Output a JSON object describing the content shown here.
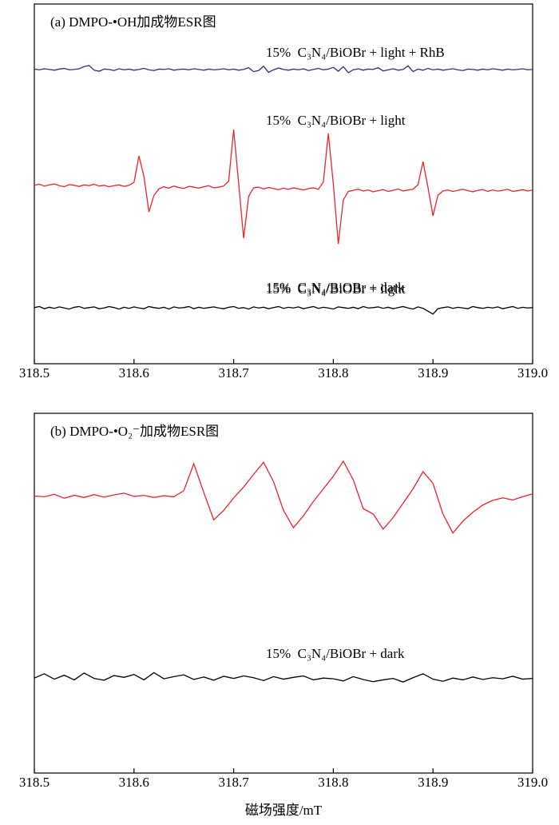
{
  "chart_data": [
    {
      "type": "line",
      "title": "(a) DMPO-•OH加成物ESR图",
      "x": [
        318.5,
        318.505,
        318.51,
        318.515,
        318.52,
        318.525,
        318.53,
        318.535,
        318.54,
        318.545,
        318.55,
        318.555,
        318.56,
        318.565,
        318.57,
        318.575,
        318.58,
        318.585,
        318.59,
        318.595,
        318.6,
        318.605,
        318.61,
        318.615,
        318.62,
        318.625,
        318.63,
        318.635,
        318.64,
        318.645,
        318.65,
        318.655,
        318.66,
        318.665,
        318.67,
        318.675,
        318.68,
        318.685,
        318.69,
        318.695,
        318.7,
        318.705,
        318.71,
        318.715,
        318.72,
        318.725,
        318.73,
        318.735,
        318.74,
        318.745,
        318.75,
        318.755,
        318.76,
        318.765,
        318.77,
        318.775,
        318.78,
        318.785,
        318.79,
        318.795,
        318.8,
        318.805,
        318.81,
        318.815,
        318.82,
        318.825,
        318.83,
        318.835,
        318.84,
        318.845,
        318.85,
        318.855,
        318.86,
        318.865,
        318.87,
        318.875,
        318.88,
        318.885,
        318.89,
        318.895,
        318.9,
        318.905,
        318.91,
        318.915,
        318.92,
        318.925,
        318.93,
        318.935,
        318.94,
        318.945,
        318.95,
        318.955,
        318.96,
        318.965,
        318.97,
        318.975,
        318.98,
        318.985,
        318.99,
        318.995,
        319.0
      ],
      "xlim": [
        318.5,
        319.0
      ],
      "xticks": [
        318.5,
        318.6,
        318.7,
        318.8,
        318.9,
        {
          "value": 319.0,
          "label": "319.0"
        }
      ],
      "ylim": [
        0,
        100
      ],
      "series": [
        {
          "name": "15%  C₃N₄/BiOBr + light + RhB",
          "color": "#2e2e8a",
          "values": [
            81.9,
            81.7,
            82.0,
            81.8,
            81.6,
            81.9,
            82.1,
            81.7,
            81.8,
            82.0,
            82.6,
            82.9,
            81.6,
            81.3,
            81.9,
            81.8,
            81.5,
            82.0,
            81.7,
            81.9,
            81.6,
            81.8,
            82.1,
            81.7,
            81.5,
            81.9,
            81.8,
            82.0,
            81.6,
            81.8,
            81.9,
            81.7,
            82.0,
            81.8,
            81.6,
            81.9,
            81.7,
            81.8,
            82.0,
            81.7,
            81.9,
            81.6,
            81.8,
            82.3,
            81.2,
            81.5,
            82.7,
            81.0,
            81.7,
            82.2,
            81.8,
            81.6,
            81.9,
            81.7,
            82.0,
            81.5,
            81.8,
            82.1,
            81.7,
            81.9,
            82.4,
            81.3,
            82.6,
            80.9,
            81.7,
            82.0,
            81.6,
            81.9,
            81.8,
            82.3,
            81.4,
            81.7,
            82.0,
            81.6,
            81.8,
            82.8,
            81.2,
            81.9,
            81.6,
            82.1,
            81.7,
            81.9,
            81.6,
            81.8,
            82.0,
            81.7,
            81.5,
            81.9,
            81.8,
            81.6,
            81.9,
            81.7,
            82.0,
            81.8,
            81.6,
            81.9,
            81.7,
            81.8,
            82.0,
            81.7,
            81.8
          ]
        },
        {
          "name": "15%  C₃N₄/BiOBr + light",
          "color": "#e8262a",
          "values": [
            49.6,
            49.9,
            49.4,
            49.7,
            50.0,
            49.5,
            49.2,
            49.8,
            49.6,
            49.3,
            49.7,
            49.5,
            49.9,
            49.4,
            49.6,
            49.2,
            49.5,
            49.7,
            49.3,
            49.6,
            50.4,
            57.8,
            52.0,
            42.2,
            46.8,
            48.6,
            49.2,
            48.8,
            49.4,
            49.0,
            48.7,
            49.3,
            49.1,
            48.8,
            49.2,
            49.5,
            48.9,
            49.1,
            49.4,
            50.8,
            65.1,
            50.2,
            34.9,
            46.5,
            48.9,
            49.1,
            48.6,
            49.0,
            48.7,
            48.4,
            48.8,
            48.5,
            48.9,
            48.6,
            48.3,
            48.7,
            48.9,
            48.5,
            50.5,
            64.0,
            50.0,
            33.3,
            45.5,
            47.9,
            48.2,
            48.5,
            48.0,
            48.3,
            47.8,
            48.1,
            48.4,
            47.9,
            48.2,
            48.6,
            48.0,
            48.3,
            48.5,
            49.8,
            56.2,
            49.0,
            41.1,
            46.9,
            48.0,
            48.3,
            47.9,
            48.2,
            48.5,
            48.1,
            47.8,
            48.2,
            48.4,
            47.9,
            48.3,
            48.0,
            48.2,
            48.5,
            47.9,
            48.1,
            48.4,
            48.0,
            48.3
          ]
        },
        {
          "name": "15%  C₃N₄/BiOBr + dark",
          "color": "#000000",
          "values": [
            15.6,
            15.9,
            15.3,
            15.7,
            15.4,
            15.8,
            15.5,
            15.2,
            15.7,
            15.9,
            15.4,
            15.6,
            15.8,
            15.3,
            15.5,
            15.9,
            15.6,
            15.2,
            15.7,
            15.4,
            15.8,
            15.5,
            15.3,
            15.9,
            15.6,
            15.4,
            15.7,
            15.2,
            15.8,
            15.5,
            15.6,
            15.9,
            15.3,
            15.7,
            15.4,
            15.6,
            15.8,
            15.5,
            15.3,
            15.7,
            15.9,
            15.4,
            15.6,
            15.2,
            15.8,
            15.5,
            15.7,
            15.3,
            15.6,
            15.9,
            15.4,
            15.7,
            15.5,
            15.8,
            15.3,
            15.6,
            15.9,
            15.4,
            15.7,
            15.5,
            15.2,
            15.8,
            15.6,
            15.4,
            15.7,
            15.3,
            15.9,
            15.5,
            15.6,
            15.8,
            15.4,
            15.7,
            15.3,
            15.6,
            15.9,
            15.5,
            15.2,
            15.8,
            15.4,
            14.6,
            13.8,
            15.3,
            15.6,
            15.8,
            15.4,
            15.7,
            15.5,
            15.3,
            15.9,
            15.6,
            15.4,
            15.7,
            15.5,
            15.8,
            15.3,
            15.6,
            15.9,
            15.4,
            15.7,
            15.5,
            15.6
          ]
        }
      ]
    },
    {
      "type": "line",
      "title": "(b) DMPO-•O₂⁻加成物ESR图",
      "xlabel": "磁场强度/mT",
      "x": [
        318.5,
        318.51,
        318.52,
        318.53,
        318.54,
        318.55,
        318.56,
        318.57,
        318.58,
        318.59,
        318.6,
        318.61,
        318.62,
        318.63,
        318.64,
        318.65,
        318.66,
        318.67,
        318.68,
        318.69,
        318.7,
        318.71,
        318.72,
        318.73,
        318.74,
        318.75,
        318.76,
        318.77,
        318.78,
        318.79,
        318.8,
        318.81,
        318.82,
        318.83,
        318.84,
        318.85,
        318.86,
        318.87,
        318.88,
        318.89,
        318.9,
        318.91,
        318.92,
        318.93,
        318.94,
        318.95,
        318.96,
        318.97,
        318.98,
        318.99,
        319.0
      ],
      "xlim": [
        318.5,
        319.0
      ],
      "xticks": [
        318.5,
        318.6,
        318.7,
        318.8,
        318.9,
        {
          "value": 319.0,
          "label": "319.0"
        }
      ],
      "ylim": [
        0,
        100
      ],
      "series": [
        {
          "name": "15%  C₃N₄/BiOBr + light",
          "color": "#e8262a",
          "values": [
            77.0,
            76.8,
            77.5,
            76.4,
            77.2,
            76.6,
            77.4,
            76.7,
            77.3,
            77.8,
            76.9,
            77.2,
            76.6,
            77.1,
            76.8,
            78.5,
            86.0,
            78.0,
            70.4,
            73.0,
            76.5,
            79.5,
            83.0,
            86.4,
            81.0,
            73.0,
            68.2,
            71.5,
            75.5,
            79.0,
            82.5,
            86.7,
            81.5,
            73.5,
            72.0,
            67.8,
            71.0,
            75.0,
            79.0,
            83.8,
            80.5,
            72.0,
            66.7,
            70.0,
            72.5,
            74.5,
            75.8,
            76.5,
            75.9,
            76.8,
            77.6
          ]
        },
        {
          "name": "15%  C₃N₄/BiOBr + dark",
          "color": "#000000",
          "values": [
            26.4,
            27.6,
            26.1,
            27.2,
            25.9,
            27.8,
            26.3,
            25.8,
            27.1,
            26.6,
            27.4,
            25.9,
            27.9,
            26.2,
            26.8,
            27.3,
            26.0,
            26.7,
            25.8,
            26.9,
            26.3,
            27.0,
            26.5,
            25.7,
            26.8,
            26.1,
            26.6,
            27.0,
            25.9,
            26.4,
            26.2,
            25.6,
            26.8,
            26.0,
            25.4,
            25.9,
            26.3,
            25.3,
            26.5,
            27.6,
            26.1,
            25.5,
            26.4,
            25.9,
            26.7,
            26.0,
            26.5,
            26.2,
            26.9,
            26.1,
            26.3
          ]
        }
      ]
    }
  ]
}
